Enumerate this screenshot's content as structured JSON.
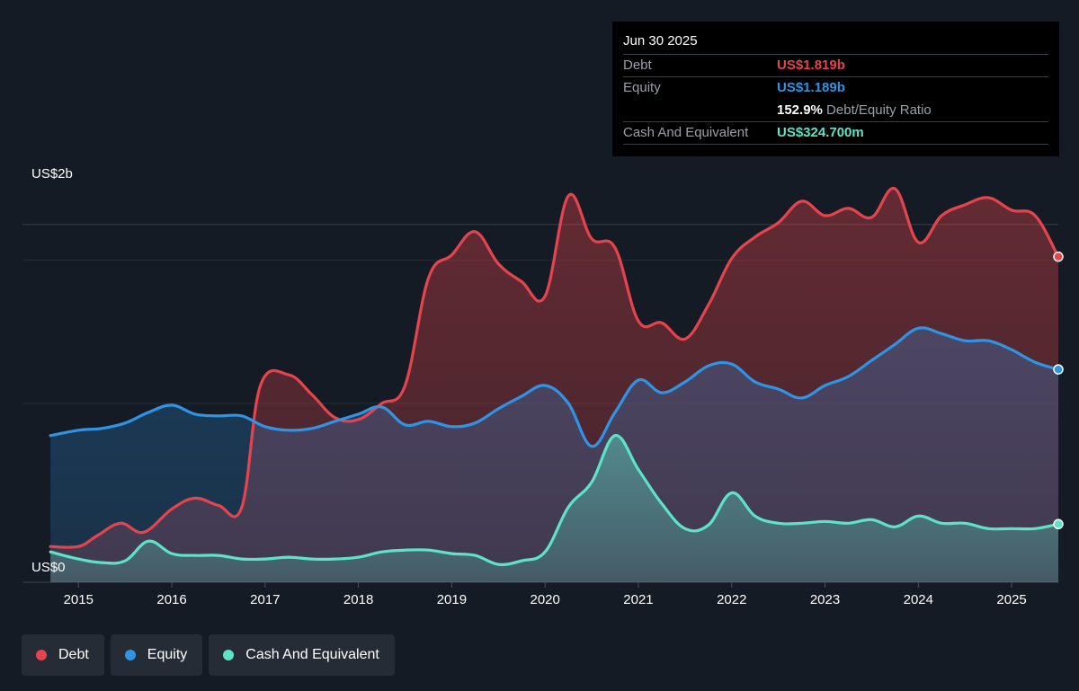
{
  "tooltip": {
    "date": "Jun 30 2025",
    "debt_label": "Debt",
    "debt_value": "US$1.819b",
    "equity_label": "Equity",
    "equity_value": "US$1.189b",
    "ratio_value": "152.9%",
    "ratio_label": "Debt/Equity Ratio",
    "cash_label": "Cash And Equivalent",
    "cash_value": "US$324.700m"
  },
  "legend": [
    {
      "label": "Debt",
      "color": "#e5444c"
    },
    {
      "label": "Equity",
      "color": "#2e94e6"
    },
    {
      "label": "Cash And Equivalent",
      "color": "#5ce3c8"
    }
  ],
  "chart_data": {
    "type": "area",
    "y_labels": [
      "US$2b",
      "US$0"
    ],
    "ylim": [
      0,
      2.2
    ],
    "xlim": [
      2014.4,
      2025.5
    ],
    "x_ticks": [
      "2015",
      "2016",
      "2017",
      "2018",
      "2019",
      "2020",
      "2021",
      "2022",
      "2023",
      "2024",
      "2025"
    ],
    "series": [
      {
        "name": "Debt",
        "color": "#e5444c",
        "points": [
          [
            2014.7,
            0.2
          ],
          [
            2015.0,
            0.2
          ],
          [
            2015.2,
            0.26
          ],
          [
            2015.45,
            0.33
          ],
          [
            2015.7,
            0.28
          ],
          [
            2016.0,
            0.41
          ],
          [
            2016.25,
            0.47
          ],
          [
            2016.5,
            0.43
          ],
          [
            2016.75,
            0.42
          ],
          [
            2016.95,
            1.1
          ],
          [
            2017.25,
            1.16
          ],
          [
            2017.5,
            1.05
          ],
          [
            2017.75,
            0.92
          ],
          [
            2018.0,
            0.91
          ],
          [
            2018.25,
            1.0
          ],
          [
            2018.5,
            1.1
          ],
          [
            2018.75,
            1.7
          ],
          [
            2019.0,
            1.83
          ],
          [
            2019.25,
            1.96
          ],
          [
            2019.5,
            1.78
          ],
          [
            2019.75,
            1.68
          ],
          [
            2020.0,
            1.6
          ],
          [
            2020.25,
            2.16
          ],
          [
            2020.5,
            1.92
          ],
          [
            2020.75,
            1.87
          ],
          [
            2021.0,
            1.46
          ],
          [
            2021.25,
            1.45
          ],
          [
            2021.5,
            1.36
          ],
          [
            2021.75,
            1.55
          ],
          [
            2022.0,
            1.81
          ],
          [
            2022.25,
            1.93
          ],
          [
            2022.5,
            2.01
          ],
          [
            2022.75,
            2.13
          ],
          [
            2023.0,
            2.05
          ],
          [
            2023.25,
            2.09
          ],
          [
            2023.5,
            2.04
          ],
          [
            2023.75,
            2.2
          ],
          [
            2024.0,
            1.9
          ],
          [
            2024.25,
            2.05
          ],
          [
            2024.5,
            2.11
          ],
          [
            2024.75,
            2.15
          ],
          [
            2025.0,
            2.08
          ],
          [
            2025.25,
            2.05
          ],
          [
            2025.5,
            1.82
          ]
        ]
      },
      {
        "name": "Equity",
        "color": "#2e94e6",
        "points": [
          [
            2014.7,
            0.82
          ],
          [
            2015.0,
            0.85
          ],
          [
            2015.25,
            0.86
          ],
          [
            2015.5,
            0.89
          ],
          [
            2015.75,
            0.95
          ],
          [
            2016.0,
            0.99
          ],
          [
            2016.25,
            0.94
          ],
          [
            2016.5,
            0.93
          ],
          [
            2016.75,
            0.93
          ],
          [
            2017.0,
            0.87
          ],
          [
            2017.25,
            0.85
          ],
          [
            2017.5,
            0.86
          ],
          [
            2017.75,
            0.9
          ],
          [
            2018.0,
            0.94
          ],
          [
            2018.25,
            0.98
          ],
          [
            2018.5,
            0.88
          ],
          [
            2018.75,
            0.9
          ],
          [
            2019.0,
            0.87
          ],
          [
            2019.25,
            0.89
          ],
          [
            2019.5,
            0.97
          ],
          [
            2019.75,
            1.04
          ],
          [
            2020.0,
            1.1
          ],
          [
            2020.25,
            1.0
          ],
          [
            2020.5,
            0.76
          ],
          [
            2020.75,
            0.95
          ],
          [
            2021.0,
            1.13
          ],
          [
            2021.25,
            1.06
          ],
          [
            2021.5,
            1.12
          ],
          [
            2021.75,
            1.21
          ],
          [
            2022.0,
            1.22
          ],
          [
            2022.25,
            1.12
          ],
          [
            2022.5,
            1.08
          ],
          [
            2022.75,
            1.03
          ],
          [
            2023.0,
            1.1
          ],
          [
            2023.25,
            1.15
          ],
          [
            2023.5,
            1.24
          ],
          [
            2023.75,
            1.33
          ],
          [
            2024.0,
            1.42
          ],
          [
            2024.25,
            1.39
          ],
          [
            2024.5,
            1.35
          ],
          [
            2024.75,
            1.35
          ],
          [
            2025.0,
            1.3
          ],
          [
            2025.25,
            1.23
          ],
          [
            2025.5,
            1.19
          ]
        ]
      },
      {
        "name": "Cash And Equivalent",
        "color": "#5ce3c8",
        "points": [
          [
            2014.7,
            0.17
          ],
          [
            2015.0,
            0.13
          ],
          [
            2015.25,
            0.11
          ],
          [
            2015.5,
            0.12
          ],
          [
            2015.75,
            0.23
          ],
          [
            2016.0,
            0.16
          ],
          [
            2016.25,
            0.15
          ],
          [
            2016.5,
            0.15
          ],
          [
            2016.75,
            0.13
          ],
          [
            2017.0,
            0.13
          ],
          [
            2017.25,
            0.14
          ],
          [
            2017.5,
            0.13
          ],
          [
            2017.75,
            0.13
          ],
          [
            2018.0,
            0.14
          ],
          [
            2018.25,
            0.17
          ],
          [
            2018.5,
            0.18
          ],
          [
            2018.75,
            0.18
          ],
          [
            2019.0,
            0.16
          ],
          [
            2019.25,
            0.15
          ],
          [
            2019.5,
            0.1
          ],
          [
            2019.75,
            0.12
          ],
          [
            2020.0,
            0.17
          ],
          [
            2020.25,
            0.42
          ],
          [
            2020.5,
            0.56
          ],
          [
            2020.75,
            0.82
          ],
          [
            2021.0,
            0.63
          ],
          [
            2021.25,
            0.44
          ],
          [
            2021.5,
            0.3
          ],
          [
            2021.75,
            0.32
          ],
          [
            2022.0,
            0.5
          ],
          [
            2022.25,
            0.37
          ],
          [
            2022.5,
            0.33
          ],
          [
            2022.75,
            0.33
          ],
          [
            2023.0,
            0.34
          ],
          [
            2023.25,
            0.33
          ],
          [
            2023.5,
            0.35
          ],
          [
            2023.75,
            0.31
          ],
          [
            2024.0,
            0.37
          ],
          [
            2024.25,
            0.33
          ],
          [
            2024.5,
            0.33
          ],
          [
            2024.75,
            0.3
          ],
          [
            2025.0,
            0.3
          ],
          [
            2025.25,
            0.3
          ],
          [
            2025.5,
            0.325
          ]
        ]
      }
    ]
  }
}
